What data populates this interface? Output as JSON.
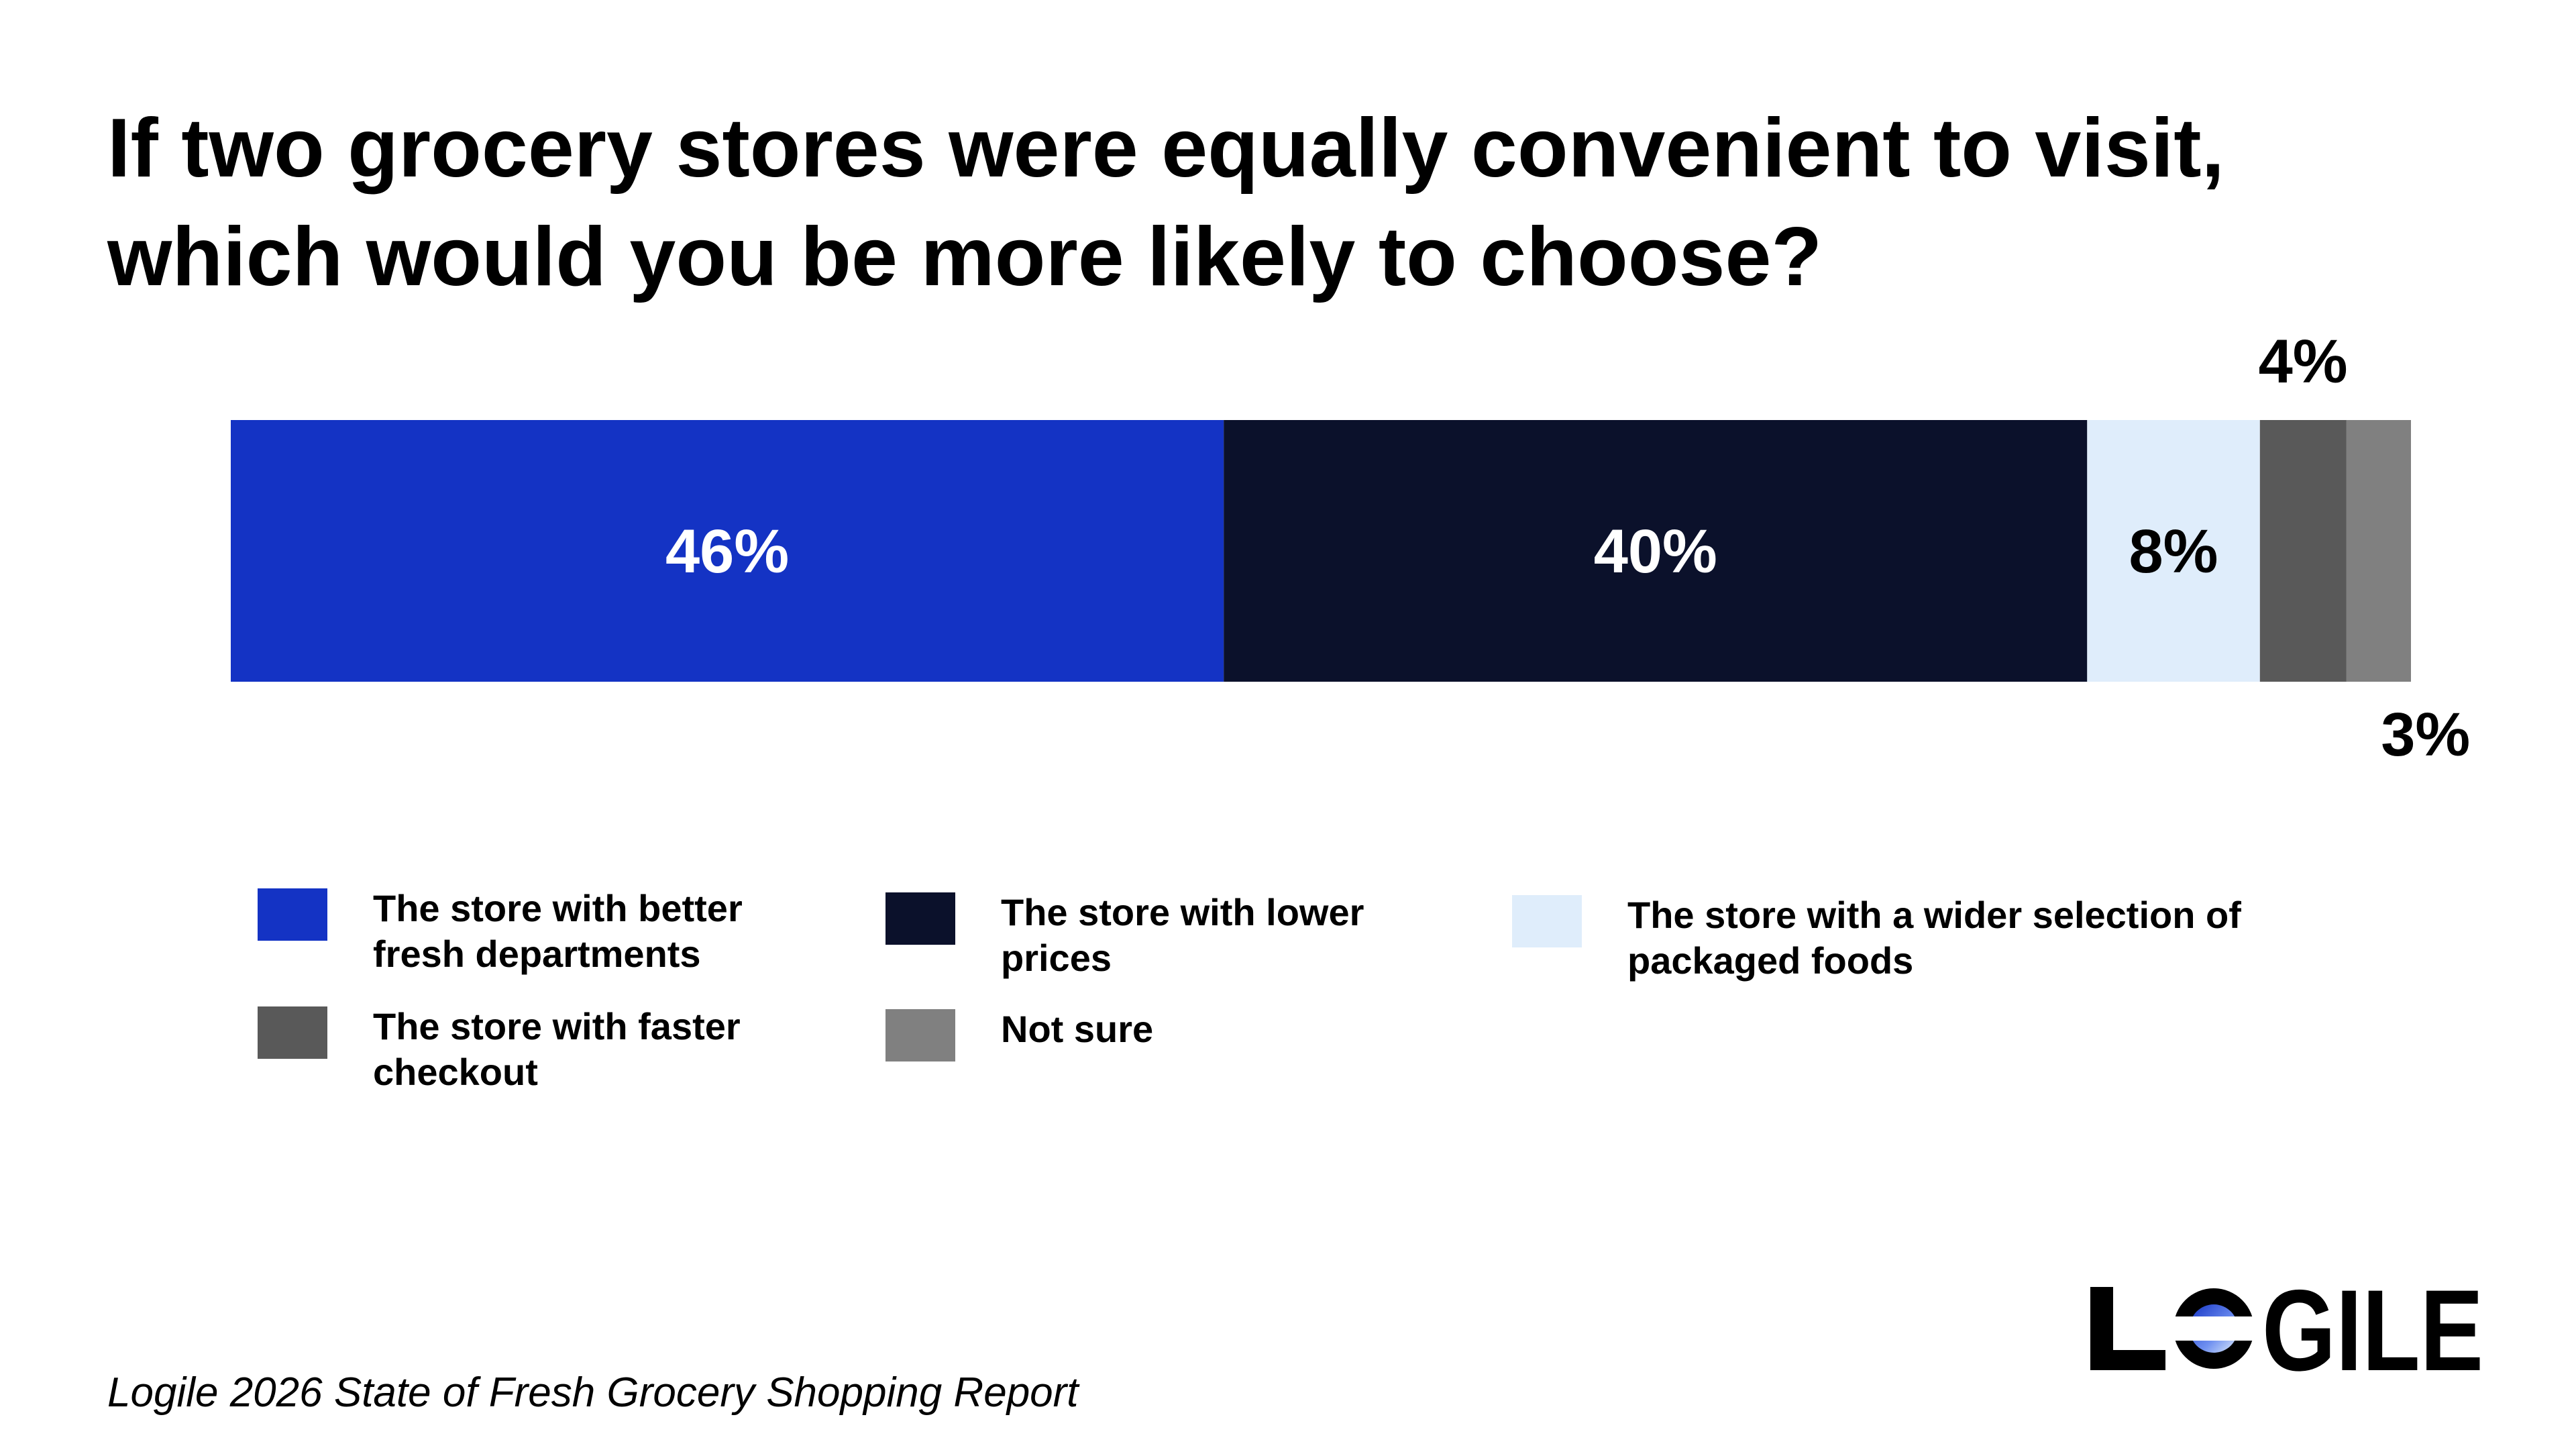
{
  "header": {
    "title": "If two grocery stores were equally convenient to visit, which would you be more likely to choose?"
  },
  "chart_data": {
    "type": "bar",
    "orientation": "horizontal-stacked",
    "title": "If two grocery stores were equally convenient to visit, which would you be more likely to choose?",
    "xlim": [
      0,
      101
    ],
    "grid": false,
    "legend_placement": "bottom",
    "series": [
      {
        "name": "The store with better fresh departments",
        "value": 46,
        "label": "46%",
        "color": "#1433C4",
        "label_color": "#FFFFFF",
        "label_position": "inside"
      },
      {
        "name": "The store with lower prices",
        "value": 40,
        "label": "40%",
        "color": "#0B112B",
        "label_color": "#FFFFFF",
        "label_position": "inside"
      },
      {
        "name": "The store with a wider selection of packaged foods",
        "value": 8,
        "label": "8%",
        "color": "#DFEDFB",
        "label_color": "#000000",
        "label_position": "inside"
      },
      {
        "name": "The store with faster checkout",
        "value": 4,
        "label": "4%",
        "color": "#595959",
        "label_color": "#000000",
        "label_position": "above"
      },
      {
        "name": "Not sure",
        "value": 3,
        "label": "3%",
        "color": "#808080",
        "label_color": "#000000",
        "label_position": "below"
      }
    ]
  },
  "legend": {
    "items": [
      {
        "label": "The store with better fresh departments",
        "color": "#1433C4"
      },
      {
        "label": "The store with lower prices",
        "color": "#0B112B"
      },
      {
        "label": "The store with a wider selection of packaged foods",
        "color": "#DFEDFB"
      },
      {
        "label": "The store with faster checkout",
        "color": "#595959"
      },
      {
        "label": "Not sure",
        "color": "#808080"
      }
    ]
  },
  "footer": {
    "source": "Logile 2026 State of Fresh Grocery Shopping Report",
    "logo_text": "LOGILE",
    "logo_icon": "circle-logo-icon"
  }
}
